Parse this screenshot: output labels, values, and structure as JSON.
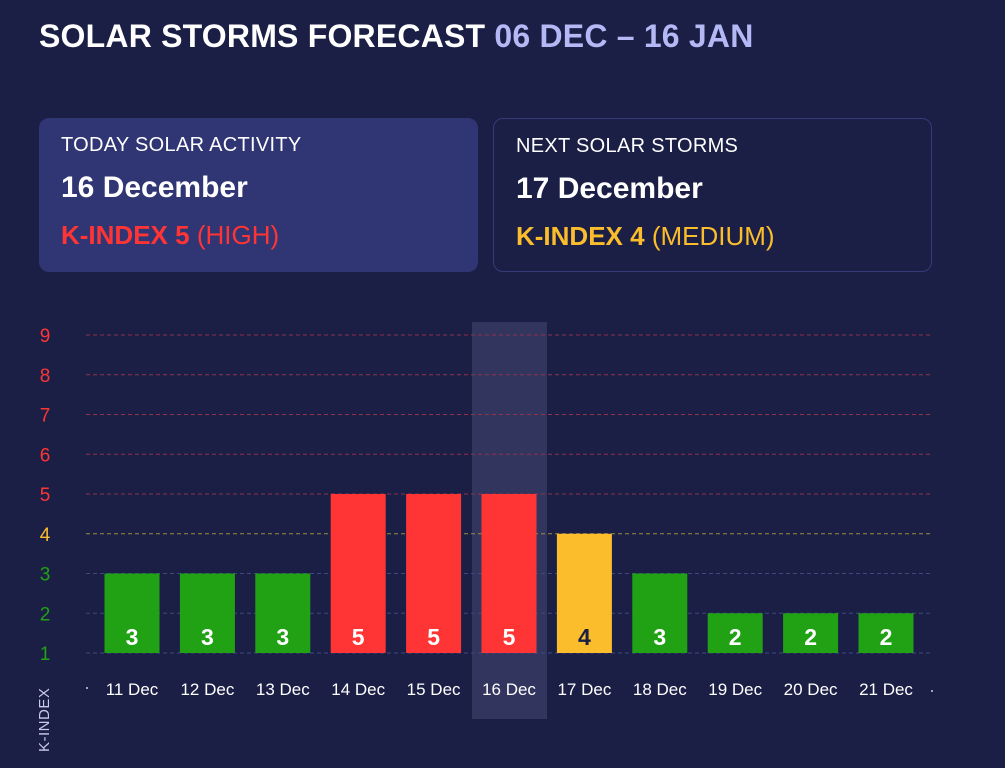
{
  "header": {
    "title": "SOLAR STORMS FORECAST",
    "range": "06 DEC – 16 JAN"
  },
  "today": {
    "label": "TODAY SOLAR ACTIVITY",
    "date": "16 December",
    "kindex": "K-INDEX 5",
    "level": "(HIGH)",
    "color": "#ff3535"
  },
  "next": {
    "label": "NEXT SOLAR STORMS",
    "date": "17 December",
    "kindex": "K-INDEX 4",
    "level": "(MEDIUM)",
    "color": "#fcbd2c"
  },
  "chart_data": {
    "type": "bar",
    "title": "",
    "xlabel": "",
    "ylabel": "K-INDEX",
    "categories": [
      "11 Dec",
      "12 Dec",
      "13 Dec",
      "14 Dec",
      "15 Dec",
      "16 Dec",
      "17 Dec",
      "18 Dec",
      "19 Dec",
      "20 Dec",
      "21 Dec"
    ],
    "values": [
      3,
      3,
      3,
      5,
      5,
      5,
      4,
      3,
      2,
      2,
      2
    ],
    "ylim": [
      1,
      9
    ],
    "yticks": [
      1,
      2,
      3,
      4,
      5,
      6,
      7,
      8,
      9
    ],
    "highlight_category": "16 Dec",
    "grid": "dashed",
    "colors": {
      "low": "#21a215",
      "medium": "#fcbd2c",
      "high": "#ff3535",
      "highlight": "#3b3f68",
      "grid_low": "#3c4a7e",
      "grid_medium": "#9a8a3e",
      "grid_high": "#8e3349"
    }
  }
}
